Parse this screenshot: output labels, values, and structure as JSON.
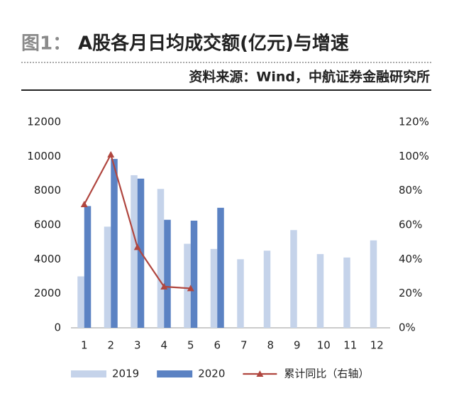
{
  "header": {
    "label": "图1：",
    "title": "A股各月日均成交额(亿元)与增速",
    "source": "资料来源：Wind，中航证券金融研究所"
  },
  "chart_data": {
    "type": "bar",
    "categories": [
      "1",
      "2",
      "3",
      "4",
      "5",
      "6",
      "7",
      "8",
      "9",
      "10",
      "11",
      "12"
    ],
    "series": [
      {
        "name": "2019",
        "color": "#c5d3ea",
        "values": [
          3000,
          5900,
          8900,
          8100,
          4900,
          4600,
          4000,
          4500,
          5700,
          4300,
          4100,
          5100
        ]
      },
      {
        "name": "2020",
        "color": "#5b82c3",
        "values": [
          7100,
          9850,
          8700,
          6300,
          6250,
          7000,
          null,
          null,
          null,
          null,
          null,
          null
        ]
      },
      {
        "name": "累计同比（右轴）",
        "type": "line",
        "marker": "triangle",
        "axis": "y2",
        "color": "#b0463f",
        "values": [
          72,
          101,
          47,
          24,
          23,
          null,
          null,
          null,
          null,
          null,
          null,
          null
        ]
      }
    ],
    "ylim": [
      0,
      12000
    ],
    "yticks": [
      0,
      2000,
      4000,
      6000,
      8000,
      10000,
      12000
    ],
    "y2lim": [
      0,
      120
    ],
    "y2ticks": [
      {
        "value": 0,
        "label": "0%"
      },
      {
        "value": 20,
        "label": "20%"
      },
      {
        "value": 40,
        "label": "40%"
      },
      {
        "value": 60,
        "label": "60%"
      },
      {
        "value": 80,
        "label": "80%"
      },
      {
        "value": 100,
        "label": "100%"
      },
      {
        "value": 120,
        "label": "120%"
      }
    ],
    "legend": "bottom"
  }
}
